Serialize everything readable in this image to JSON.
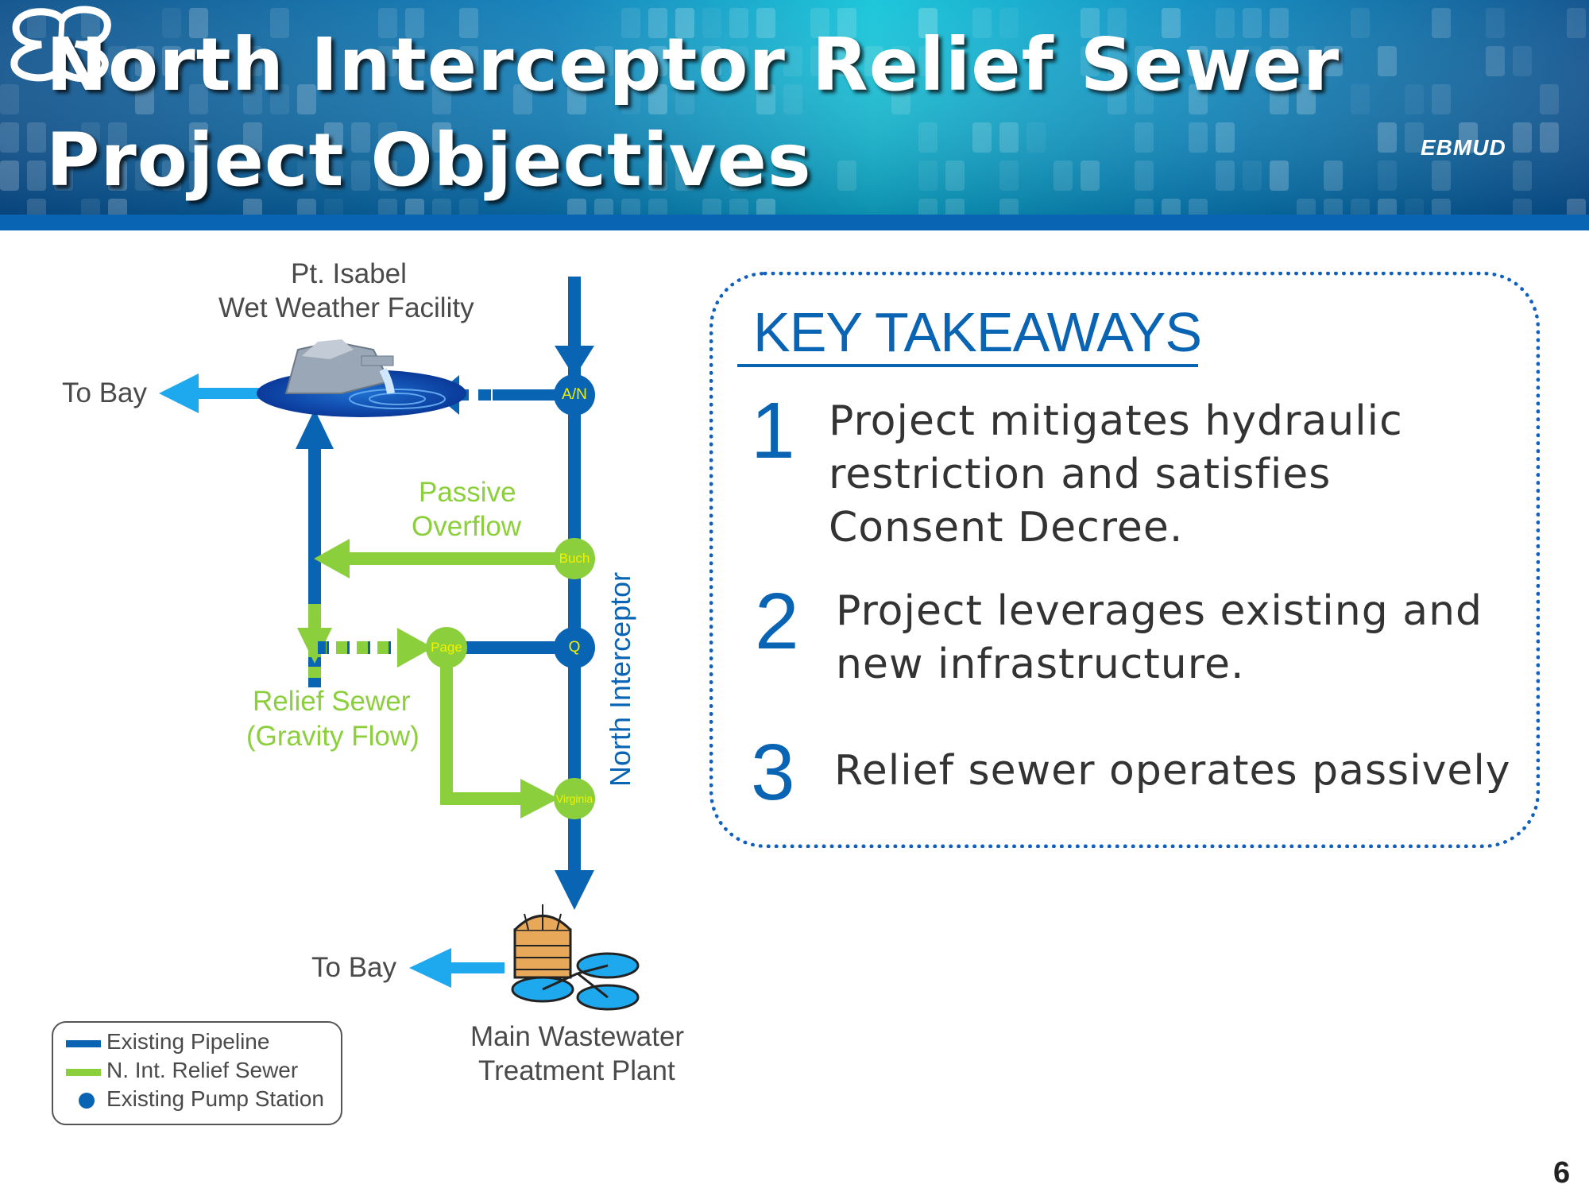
{
  "header": {
    "title_line1": "North Interceptor Relief Sewer",
    "title_line2": "Project Objectives",
    "logo_text": "EBMUD"
  },
  "diagram": {
    "facility_label_line1": "Pt. Isabel",
    "facility_label_line2": "Wet Weather Facility",
    "to_bay_top": "To Bay",
    "to_bay_bottom": "To Bay",
    "passive_overflow_line1": "Passive",
    "passive_overflow_line2": "Overflow",
    "relief_sewer_line1": "Relief Sewer",
    "relief_sewer_line2": "(Gravity Flow)",
    "north_interceptor": "North Interceptor",
    "plant_label_line1": "Main Wastewater",
    "plant_label_line2": "Treatment Plant",
    "nodes": {
      "an": "A/N",
      "buch": "Buch",
      "page": "Page",
      "q": "Q",
      "virginia": "Virginia"
    }
  },
  "legend": {
    "items": [
      {
        "label": "Existing Pipeline",
        "color": "#0a64b4",
        "shape": "line"
      },
      {
        "label": "N. Int. Relief Sewer",
        "color": "#8ccf3c",
        "shape": "line"
      },
      {
        "label": "Existing Pump Station",
        "color": "#0a64b4",
        "shape": "dot"
      }
    ]
  },
  "takeaways": {
    "title": "KEY TAKEAWAYS",
    "items": [
      {
        "num": "1",
        "text_line1": "Project mitigates hydraulic",
        "text_line2": "restriction and satisfies",
        "text_line3": "Consent Decree."
      },
      {
        "num": "2",
        "text_line1": "Project leverages existing and",
        "text_line2": "new infrastructure."
      },
      {
        "num": "3",
        "text_line1": "Relief sewer operates passively"
      }
    ]
  },
  "page_number": "6",
  "colors": {
    "existing_pipeline": "#0a64b4",
    "relief_sewer": "#8ccf3c",
    "to_bay_arrow": "#1ea8ee",
    "takeaway_border": "#1060c0"
  }
}
